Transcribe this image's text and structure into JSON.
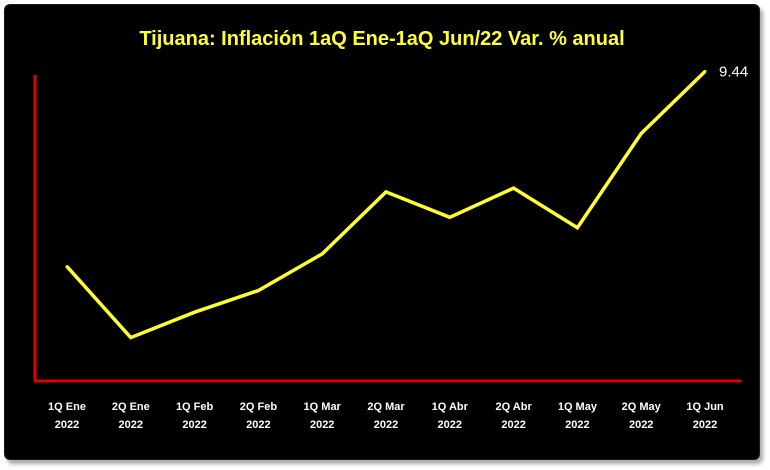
{
  "chart_data": {
    "type": "line",
    "title": "Tijuana: Inflación 1aQ Ene-1aQ Jun/22 Var. % anual",
    "categories": [
      [
        "1Q Ene",
        "2022"
      ],
      [
        "2Q Ene",
        "2022"
      ],
      [
        "1Q Feb",
        "2022"
      ],
      [
        "2Q Feb",
        "2022"
      ],
      [
        "1Q Mar",
        "2022"
      ],
      [
        "2Q Mar",
        "2022"
      ],
      [
        "1Q Abr",
        "2022"
      ],
      [
        "2Q Abr",
        "2022"
      ],
      [
        "1Q May",
        "2022"
      ],
      [
        "2Q May",
        "2022"
      ],
      [
        "1Q Jun",
        "2022"
      ]
    ],
    "series": [
      {
        "values": [
          6.83,
          5.88,
          6.22,
          6.51,
          7.0,
          7.83,
          7.49,
          7.88,
          7.35,
          8.61,
          9.44
        ],
        "color": "#ffff33"
      }
    ],
    "data_labels": [
      {
        "index": 10,
        "text": "9.44"
      }
    ],
    "ylim": [
      5.3,
      9.5
    ],
    "grid": false,
    "legend": false,
    "axis_color": "#e00000",
    "background": "#000000"
  }
}
